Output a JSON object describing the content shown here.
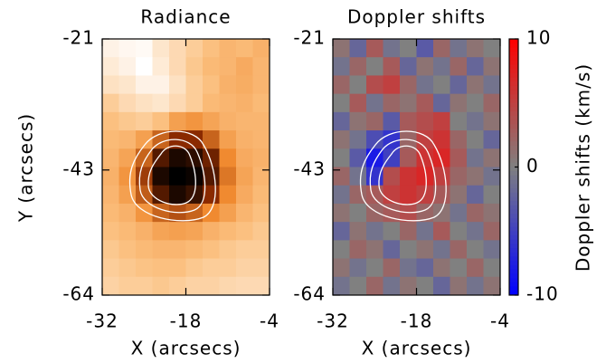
{
  "chart_data": {
    "type": "heatmap",
    "xlabel": "X (arcsecs)",
    "ylabel": "Y (arcsecs)",
    "xlim": [
      -32,
      -4
    ],
    "ylim": [
      -64,
      -21
    ],
    "xticks": [
      -32,
      -18,
      -4
    ],
    "yticks": [
      -64,
      -43,
      -21
    ],
    "panels": [
      {
        "title": "Radiance",
        "colormap": [
          "#000000",
          "#8a2a00",
          "#f08a30",
          "#fbc080",
          "#ffffff"
        ],
        "z": [
          [
            0.95,
            0.97,
            0.98,
            0.9,
            0.85,
            0.8,
            0.75,
            0.7,
            0.72,
            0.68
          ],
          [
            0.92,
            0.95,
            1,
            0.92,
            0.85,
            0.78,
            0.72,
            0.7,
            0.65,
            0.7
          ],
          [
            0.88,
            0.9,
            0.95,
            0.95,
            0.88,
            0.8,
            0.75,
            0.68,
            0.66,
            0.7
          ],
          [
            0.8,
            0.85,
            0.88,
            0.9,
            0.85,
            0.8,
            0.72,
            0.7,
            0.68,
            0.72
          ],
          [
            0.75,
            0.78,
            0.8,
            0.75,
            0.6,
            0.55,
            0.62,
            0.68,
            0.7,
            0.7
          ],
          [
            0.72,
            0.7,
            0.6,
            0.4,
            0.25,
            0.25,
            0.4,
            0.6,
            0.68,
            0.7
          ],
          [
            0.7,
            0.62,
            0.4,
            0.15,
            0.05,
            0.08,
            0.2,
            0.5,
            0.65,
            0.68
          ],
          [
            0.68,
            0.55,
            0.3,
            0.05,
            0,
            0.02,
            0.15,
            0.45,
            0.62,
            0.7
          ],
          [
            0.7,
            0.6,
            0.38,
            0.15,
            0.05,
            0.1,
            0.25,
            0.5,
            0.65,
            0.72
          ],
          [
            0.72,
            0.68,
            0.55,
            0.4,
            0.35,
            0.4,
            0.5,
            0.6,
            0.7,
            0.75
          ],
          [
            0.75,
            0.72,
            0.68,
            0.62,
            0.6,
            0.62,
            0.68,
            0.72,
            0.75,
            0.78
          ],
          [
            0.78,
            0.75,
            0.72,
            0.7,
            0.7,
            0.72,
            0.75,
            0.78,
            0.8,
            0.8
          ],
          [
            0.8,
            0.78,
            0.76,
            0.75,
            0.75,
            0.78,
            0.8,
            0.8,
            0.82,
            0.82
          ],
          [
            0.82,
            0.8,
            0.8,
            0.78,
            0.8,
            0.82,
            0.82,
            0.84,
            0.85,
            0.85
          ]
        ]
      },
      {
        "title": "Doppler shifts",
        "colormap": [
          "#0000ff",
          "#808080",
          "#ff0000"
        ],
        "colorbar": {
          "label": "Doppler shifts (km/s)",
          "lim": [
            -10,
            10
          ],
          "ticks": [
            -10,
            0,
            10
          ]
        },
        "z": [
          [
            1,
            -2,
            3,
            -1,
            0,
            -3,
            2,
            -1,
            1,
            0
          ],
          [
            -1,
            2,
            0,
            3,
            -2,
            1,
            -1,
            2,
            -2,
            1
          ],
          [
            2,
            0,
            4,
            5,
            2,
            -1,
            0,
            -2,
            1,
            -1
          ],
          [
            0,
            3,
            -1,
            2,
            1,
            3,
            -2,
            1,
            0,
            2
          ],
          [
            -2,
            1,
            2,
            -3,
            3,
            4,
            5,
            0,
            -1,
            1
          ],
          [
            1,
            -1,
            -4,
            -6,
            2,
            5,
            6,
            2,
            0,
            -2
          ],
          [
            0,
            -3,
            -8,
            -5,
            3,
            6,
            7,
            3,
            -1,
            1
          ],
          [
            2,
            -1,
            -6,
            4,
            6,
            7,
            5,
            2,
            1,
            -1
          ],
          [
            -1,
            2,
            3,
            5,
            6,
            5,
            3,
            1,
            -2,
            0
          ],
          [
            1,
            0,
            2,
            3,
            4,
            2,
            1,
            -1,
            2,
            1
          ],
          [
            -2,
            1,
            -1,
            0,
            2,
            -1,
            3,
            0,
            -1,
            2
          ],
          [
            0,
            2,
            1,
            -2,
            0,
            1,
            -1,
            2,
            0,
            -1
          ],
          [
            1,
            -1,
            0,
            2,
            -1,
            -2,
            1,
            0,
            2,
            0
          ],
          [
            -1,
            0,
            2,
            -1,
            1,
            0,
            -2,
            1,
            -1,
            1
          ]
        ]
      }
    ]
  }
}
